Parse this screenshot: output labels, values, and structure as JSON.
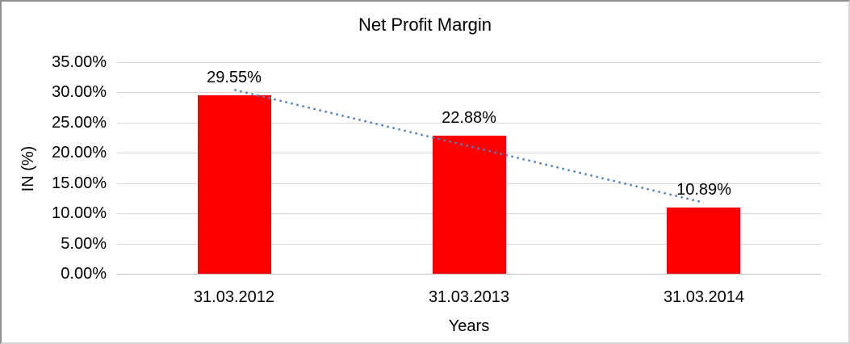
{
  "chart_data": {
    "type": "bar",
    "title": "Net Profit Margin",
    "xlabel": "Years",
    "ylabel": "IN (%)",
    "categories": [
      "31.03.2012",
      "31.03.2013",
      "31.03.2014"
    ],
    "values": [
      29.55,
      22.88,
      10.89
    ],
    "data_labels": [
      "29.55%",
      "22.88%",
      "10.89%"
    ],
    "ylim": [
      0,
      35
    ],
    "ytick_step": 5,
    "ytick_labels": [
      "0.00%",
      "5.00%",
      "10.00%",
      "15.00%",
      "20.00%",
      "25.00%",
      "30.00%",
      "35.00%"
    ],
    "grid": true,
    "legend": "none",
    "trendline": {
      "type": "linear",
      "style": "dotted"
    },
    "colors": {
      "bar": "#ff0000",
      "trendline": "#4f81bd",
      "gridline": "#d9d9d9",
      "axis_line": "#c0c0c0",
      "text": "#000000"
    }
  }
}
